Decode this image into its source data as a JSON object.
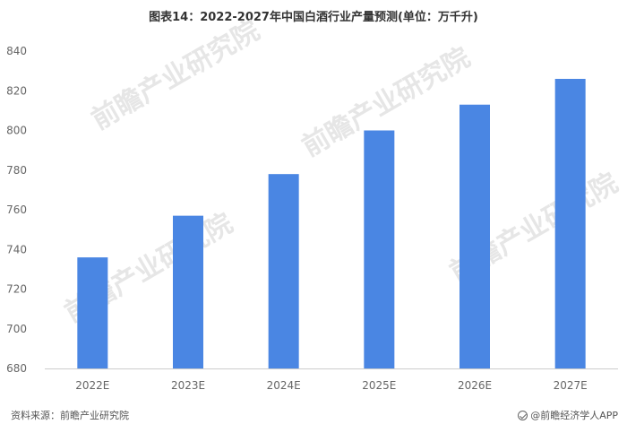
{
  "colors": {
    "bar": "#4a86e3",
    "axis": "#cccccc",
    "text": "#333333"
  },
  "chart_data": {
    "type": "bar",
    "title": "图表14：2022-2027年中国白酒行业产量预测(单位：万千升)",
    "categories": [
      "2022E",
      "2023E",
      "2024E",
      "2025E",
      "2026E",
      "2027E"
    ],
    "values": [
      736,
      757,
      778,
      800,
      813,
      826
    ],
    "ylim": [
      680,
      840
    ],
    "yticks": [
      680,
      700,
      720,
      740,
      760,
      780,
      800,
      820,
      840
    ],
    "grid": false
  },
  "watermark": {
    "text": "前瞻产业研究院",
    "icon": "qianzhan-logo-icon"
  },
  "footer": {
    "source": "资料来源：前瞻产业研究院",
    "brand": "@前瞻经济学人APP",
    "brand_icon": "qianzhan-logo-icon"
  }
}
